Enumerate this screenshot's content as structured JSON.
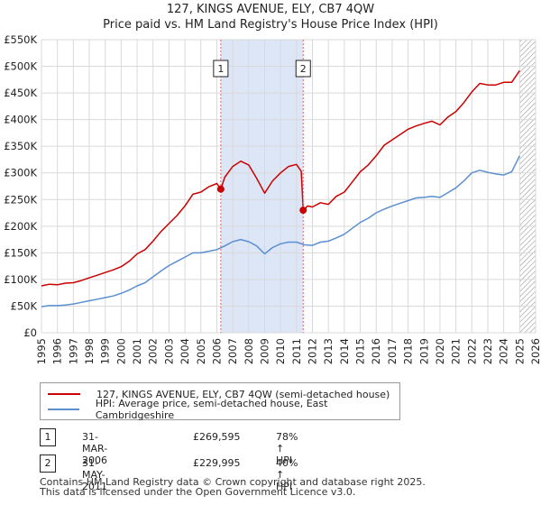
{
  "title": "127, KINGS AVENUE, ELY, CB7 4QW",
  "subtitle": "Price paid vs. HM Land Registry's House Price Index (HPI)",
  "colors": {
    "property": "#cc0000",
    "hpi": "#5b8fd0",
    "shade": "#dde6f7",
    "grid": "#d9d9d9"
  },
  "chart_data": {
    "type": "line",
    "title": "127, KINGS AVENUE, ELY, CB7 4QW",
    "subtitle": "Price paid vs. HM Land Registry's House Price Index (HPI)",
    "xlabel": "",
    "ylabel": "",
    "xlim": [
      1995,
      2026
    ],
    "ylim": [
      0,
      550000
    ],
    "y_ticks": [
      0,
      50000,
      100000,
      150000,
      200000,
      250000,
      300000,
      350000,
      400000,
      450000,
      500000,
      550000
    ],
    "y_tick_labels": [
      "£0",
      "£50K",
      "£100K",
      "£150K",
      "£200K",
      "£250K",
      "£300K",
      "£350K",
      "£400K",
      "£450K",
      "£500K",
      "£550K"
    ],
    "x_ticks": [
      1995,
      1996,
      1997,
      1998,
      1999,
      2000,
      2001,
      2002,
      2003,
      2004,
      2005,
      2006,
      2007,
      2008,
      2009,
      2010,
      2011,
      2012,
      2013,
      2014,
      2015,
      2016,
      2017,
      2018,
      2019,
      2020,
      2021,
      2022,
      2023,
      2024,
      2025,
      2026
    ],
    "x_tick_labels": [
      "1995",
      "1996",
      "1997",
      "1998",
      "1999",
      "2000",
      "2001",
      "2002",
      "2003",
      "2004",
      "2005",
      "2006",
      "2007",
      "2008",
      "2009",
      "2010",
      "2011",
      "2012",
      "2013",
      "2014",
      "2015",
      "2016",
      "2017",
      "2018",
      "2019",
      "2020",
      "2021",
      "2022",
      "2023",
      "2024",
      "2025",
      "2026"
    ],
    "grid": true,
    "shaded_region": [
      2006.25,
      2011.42
    ],
    "hatched_region": [
      2025.0,
      2026.0
    ],
    "series": [
      {
        "name": "127, KINGS AVENUE, ELY, CB7 4QW (semi-detached house)",
        "color": "#cc0000",
        "x": [
          1995.0,
          1995.5,
          1996.0,
          1996.5,
          1997.0,
          1997.5,
          1998.0,
          1998.5,
          1999.0,
          1999.5,
          2000.0,
          2000.5,
          2001.0,
          2001.5,
          2002.0,
          2002.5,
          2003.0,
          2003.5,
          2004.0,
          2004.5,
          2005.0,
          2005.5,
          2006.0,
          2006.25,
          2006.5,
          2007.0,
          2007.5,
          2008.0,
          2008.5,
          2009.0,
          2009.5,
          2010.0,
          2010.5,
          2011.0,
          2011.3,
          2011.42,
          2011.7,
          2012.0,
          2012.5,
          2013.0,
          2013.5,
          2014.0,
          2014.5,
          2015.0,
          2015.5,
          2016.0,
          2016.5,
          2017.0,
          2017.5,
          2018.0,
          2018.5,
          2019.0,
          2019.5,
          2020.0,
          2020.5,
          2021.0,
          2021.5,
          2022.0,
          2022.5,
          2023.0,
          2023.5,
          2024.0,
          2024.5,
          2025.0
        ],
        "y": [
          88000,
          91000,
          90000,
          93000,
          94000,
          98000,
          103000,
          108000,
          113000,
          118000,
          124000,
          134000,
          148000,
          156000,
          172000,
          190000,
          205000,
          220000,
          238000,
          260000,
          264000,
          274000,
          280000,
          269595,
          292000,
          312000,
          322000,
          315000,
          290000,
          262000,
          285000,
          300000,
          312000,
          316000,
          303000,
          229995,
          238000,
          236000,
          244000,
          241000,
          256000,
          264000,
          283000,
          302000,
          315000,
          332000,
          352000,
          362000,
          372000,
          382000,
          388000,
          393000,
          397000,
          390000,
          405000,
          415000,
          432000,
          452000,
          468000,
          465000,
          465000,
          470000,
          470000,
          492000
        ]
      },
      {
        "name": "HPI: Average price, semi-detached house, East Cambridgeshire",
        "color": "#5b8fd0",
        "x": [
          1995.0,
          1995.5,
          1996.0,
          1996.5,
          1997.0,
          1997.5,
          1998.0,
          1998.5,
          1999.0,
          1999.5,
          2000.0,
          2000.5,
          2001.0,
          2001.5,
          2002.0,
          2002.5,
          2003.0,
          2003.5,
          2004.0,
          2004.5,
          2005.0,
          2005.5,
          2006.0,
          2006.5,
          2007.0,
          2007.5,
          2008.0,
          2008.5,
          2009.0,
          2009.5,
          2010.0,
          2010.5,
          2011.0,
          2011.5,
          2012.0,
          2012.5,
          2013.0,
          2013.5,
          2014.0,
          2014.5,
          2015.0,
          2015.5,
          2016.0,
          2016.5,
          2017.0,
          2017.5,
          2018.0,
          2018.5,
          2019.0,
          2019.5,
          2020.0,
          2020.5,
          2021.0,
          2021.5,
          2022.0,
          2022.5,
          2023.0,
          2023.5,
          2024.0,
          2024.5,
          2025.0
        ],
        "y": [
          49000,
          51000,
          51000,
          52000,
          54000,
          57000,
          60000,
          63000,
          66000,
          69000,
          74000,
          80000,
          88000,
          94000,
          105000,
          116000,
          126000,
          134000,
          142000,
          150000,
          150000,
          153000,
          156000,
          163000,
          171000,
          175000,
          171000,
          163000,
          148000,
          160000,
          167000,
          170000,
          170000,
          165000,
          164000,
          170000,
          172000,
          178000,
          185000,
          196000,
          207000,
          215000,
          225000,
          232000,
          238000,
          243000,
          248000,
          253000,
          254000,
          256000,
          254000,
          263000,
          272000,
          285000,
          300000,
          305000,
          301000,
          298000,
          296000,
          302000,
          332000
        ]
      }
    ],
    "annotations": [
      {
        "label": "1",
        "x": 2006.25,
        "y": 269595
      },
      {
        "label": "2",
        "x": 2011.42,
        "y": 229995
      }
    ]
  },
  "legend": {
    "property_label": "127, KINGS AVENUE, ELY, CB7 4QW (semi-detached house)",
    "hpi_label": "HPI: Average price, semi-detached house, East Cambridgeshire"
  },
  "sales": [
    {
      "num": "1",
      "date": "31-MAR-2006",
      "price": "£269,595",
      "hpi": "78% ↑ HPI"
    },
    {
      "num": "2",
      "date": "31-MAY-2011",
      "price": "£229,995",
      "hpi": "40% ↑ HPI"
    }
  ],
  "footer": {
    "line1": "Contains HM Land Registry data © Crown copyright and database right 2025.",
    "line2": "This data is licensed under the Open Government Licence v3.0."
  }
}
